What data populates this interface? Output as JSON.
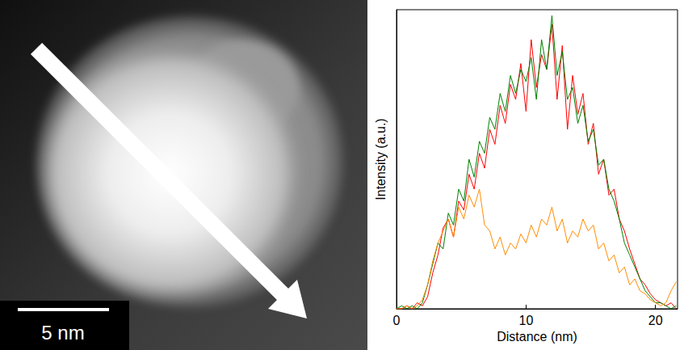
{
  "image": {
    "scale_bar": "5 nm"
  },
  "chart_data": {
    "type": "line",
    "x_label": "Distance (nm)",
    "y_label": "Intensity (a.u.)",
    "x": [
      0,
      0.4,
      0.8,
      1.2,
      1.6,
      2.0,
      2.4,
      2.8,
      3.2,
      3.6,
      4.0,
      4.4,
      4.8,
      5.2,
      5.6,
      6.0,
      6.4,
      6.8,
      7.2,
      7.6,
      8.0,
      8.4,
      8.8,
      9.2,
      9.6,
      10.0,
      10.4,
      10.8,
      11.2,
      11.6,
      12.0,
      12.4,
      12.8,
      13.2,
      13.6,
      14.0,
      14.4,
      14.8,
      15.2,
      15.6,
      16.0,
      16.4,
      16.8,
      17.2,
      17.6,
      18.0,
      18.4,
      18.8,
      19.2,
      19.6,
      20.0,
      20.4,
      20.8,
      21.2,
      21.6
    ],
    "series": [
      {
        "color": "#ff0000",
        "values": [
          0,
          0,
          0.01,
          0,
          0.02,
          0.01,
          0.04,
          0.12,
          0.18,
          0.27,
          0.3,
          0.24,
          0.36,
          0.33,
          0.45,
          0.4,
          0.52,
          0.47,
          0.6,
          0.55,
          0.68,
          0.62,
          0.75,
          0.7,
          0.82,
          0.66,
          0.9,
          0.74,
          0.85,
          0.8,
          0.95,
          0.7,
          0.88,
          0.6,
          0.78,
          0.65,
          0.72,
          0.55,
          0.62,
          0.45,
          0.5,
          0.38,
          0.4,
          0.3,
          0.26,
          0.2,
          0.15,
          0.1,
          0.08,
          0.05,
          0.03,
          0.02,
          0.01,
          0.02,
          0
        ]
      },
      {
        "color": "#008000",
        "values": [
          0,
          0.01,
          0,
          0.01,
          0,
          0.02,
          0.08,
          0.15,
          0.22,
          0.2,
          0.32,
          0.28,
          0.4,
          0.36,
          0.5,
          0.44,
          0.56,
          0.52,
          0.64,
          0.6,
          0.72,
          0.66,
          0.78,
          0.72,
          0.8,
          0.76,
          0.84,
          0.7,
          0.9,
          0.8,
          0.98,
          0.78,
          0.86,
          0.7,
          0.74,
          0.62,
          0.68,
          0.56,
          0.6,
          0.48,
          0.5,
          0.4,
          0.36,
          0.3,
          0.22,
          0.18,
          0.14,
          0.1,
          0.06,
          0.04,
          0.02,
          0.02,
          0.01,
          0,
          0.01
        ]
      },
      {
        "color": "#ff8c00",
        "values": [
          0,
          0,
          0.01,
          0,
          0.01,
          0.03,
          0.08,
          0.16,
          0.22,
          0.26,
          0.3,
          0.24,
          0.34,
          0.3,
          0.38,
          0.34,
          0.4,
          0.28,
          0.26,
          0.2,
          0.24,
          0.18,
          0.22,
          0.2,
          0.25,
          0.22,
          0.28,
          0.24,
          0.3,
          0.28,
          0.34,
          0.26,
          0.3,
          0.22,
          0.26,
          0.24,
          0.3,
          0.26,
          0.28,
          0.2,
          0.22,
          0.16,
          0.18,
          0.12,
          0.14,
          0.08,
          0.1,
          0.06,
          0.05,
          0.03,
          0.02,
          0.01,
          0.02,
          0.06,
          0.09
        ]
      }
    ],
    "xlim": [
      0,
      21.7
    ],
    "xticks": [
      0,
      10,
      20
    ],
    "ylim": [
      0,
      1
    ],
    "tick_labels": "x",
    "grid": false
  }
}
